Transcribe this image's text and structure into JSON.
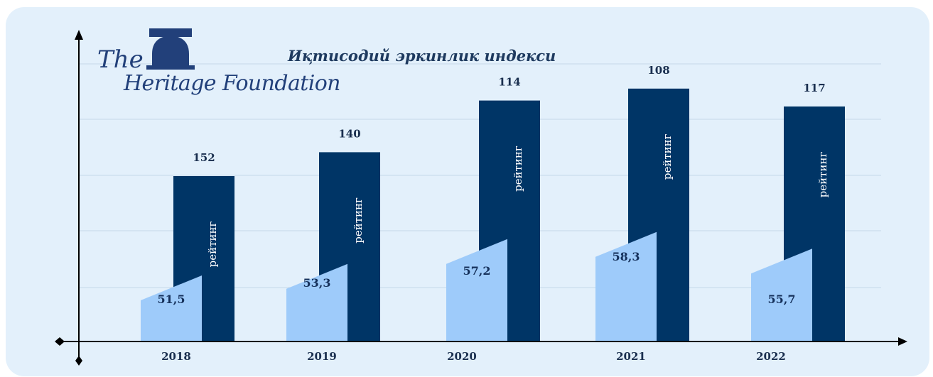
{
  "logo": {
    "line1": "The",
    "line2": "Heritage Foundation"
  },
  "chart_data": {
    "type": "bar",
    "title": "Иқтисодий эркинлик индекси",
    "categories": [
      "2018",
      "2019",
      "2020",
      "2021",
      "2022"
    ],
    "series": [
      {
        "name": "рейтинг",
        "values": [
          152,
          140,
          114,
          108,
          117
        ],
        "color": "#003566"
      },
      {
        "values": [
          51.5,
          53.3,
          57.2,
          58.3,
          55.7
        ],
        "labels": [
          "51,5",
          "53,3",
          "57,2",
          "58,3",
          "55,7"
        ],
        "color": "#9ecbfa"
      }
    ],
    "grid": true,
    "legend": "none"
  }
}
